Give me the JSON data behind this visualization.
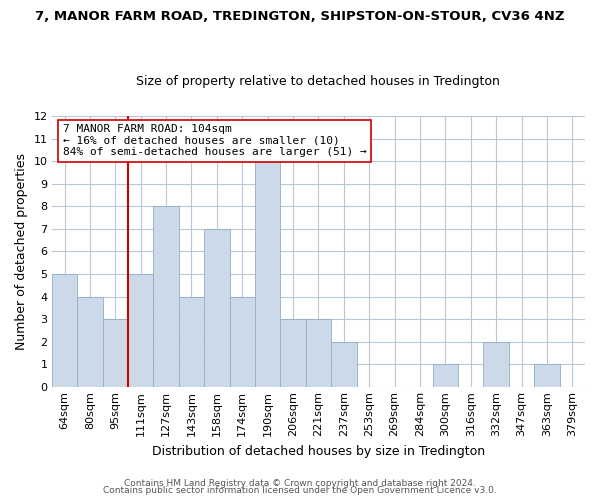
{
  "title_line1": "7, MANOR FARM ROAD, TREDINGTON, SHIPSTON-ON-STOUR, CV36 4NZ",
  "title_line2": "Size of property relative to detached houses in Tredington",
  "xlabel": "Distribution of detached houses by size in Tredington",
  "ylabel": "Number of detached properties",
  "bar_labels": [
    "64sqm",
    "80sqm",
    "95sqm",
    "111sqm",
    "127sqm",
    "143sqm",
    "158sqm",
    "174sqm",
    "190sqm",
    "206sqm",
    "221sqm",
    "237sqm",
    "253sqm",
    "269sqm",
    "284sqm",
    "300sqm",
    "316sqm",
    "332sqm",
    "347sqm",
    "363sqm",
    "379sqm"
  ],
  "bar_values": [
    5,
    4,
    3,
    5,
    8,
    4,
    7,
    4,
    10,
    3,
    3,
    2,
    0,
    0,
    0,
    1,
    0,
    2,
    0,
    1,
    0
  ],
  "bar_color": "#ccd9e8",
  "bar_edge_color": "#8fafc8",
  "vline_color": "#cc0000",
  "vline_x_index": 3,
  "annotation_text": "7 MANOR FARM ROAD: 104sqm\n← 16% of detached houses are smaller (10)\n84% of semi-detached houses are larger (51) →",
  "annotation_box_color": "#ffffff",
  "annotation_box_edgecolor": "#cc0000",
  "ylim": [
    0,
    12
  ],
  "yticks": [
    0,
    1,
    2,
    3,
    4,
    5,
    6,
    7,
    8,
    9,
    10,
    11,
    12
  ],
  "footer_line1": "Contains HM Land Registry data © Crown copyright and database right 2024.",
  "footer_line2": "Contains public sector information licensed under the Open Government Licence v3.0.",
  "background_color": "#ffffff",
  "grid_color": "#b8c8d8",
  "title_fontsize": 9.5,
  "subtitle_fontsize": 9,
  "xlabel_fontsize": 9,
  "ylabel_fontsize": 9,
  "tick_fontsize": 8,
  "ann_fontsize": 8,
  "footer_fontsize": 6.5
}
